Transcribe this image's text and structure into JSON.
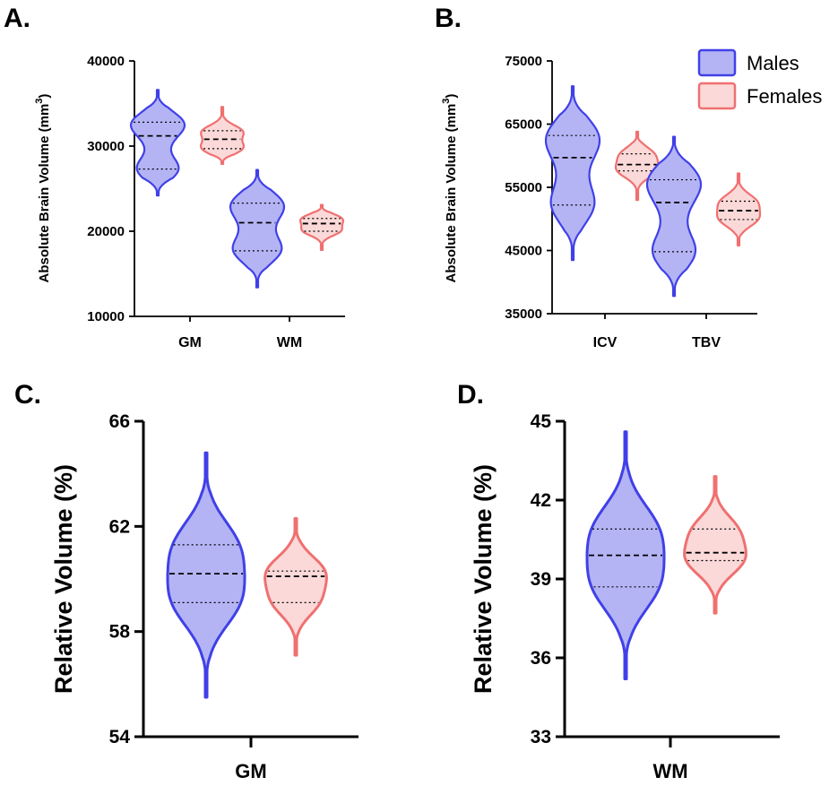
{
  "colors": {
    "male_stroke": "#4040e8",
    "male_fill": "#b4b4f5",
    "female_stroke": "#f07070",
    "female_fill": "#fbd9d9"
  },
  "legend": {
    "males": "Males",
    "females": "Females"
  },
  "panels": {
    "A": {
      "label": "A.",
      "ylabel_text": "Absolute Brain Volume (mm",
      "ylabel_sup": "3",
      "ylabel_close": ")"
    },
    "B": {
      "label": "B.",
      "ylabel_text": "Absolute Brain Volume (mm",
      "ylabel_sup": "3",
      "ylabel_close": ")"
    },
    "C": {
      "label": "C.",
      "ylabel": "Relative Volume (%)"
    },
    "D": {
      "label": "D.",
      "ylabel": "Relative Volume (%)"
    }
  },
  "chart_data": [
    {
      "id": "A",
      "type": "violin",
      "ylabel": "Absolute Brain Volume (mm3)",
      "ylim": [
        10000,
        40000
      ],
      "yticks": [
        10000,
        20000,
        30000,
        40000
      ],
      "ytick_labels": [
        "10000",
        "20000",
        "30000",
        "40000"
      ],
      "categories": [
        "GM",
        "WM"
      ],
      "series": [
        {
          "name": "Males",
          "groups": [
            {
              "category": "GM",
              "min": 24200,
              "max": 36600,
              "q1": 27300,
              "median": 31200,
              "q3": 32800
            },
            {
              "category": "WM",
              "min": 13400,
              "max": 27200,
              "q1": 17700,
              "median": 21000,
              "q3": 23300
            }
          ]
        },
        {
          "name": "Females",
          "groups": [
            {
              "category": "GM",
              "min": 27900,
              "max": 34600,
              "q1": 29700,
              "median": 30800,
              "q3": 31800
            },
            {
              "category": "WM",
              "min": 17800,
              "max": 23100,
              "q1": 20000,
              "median": 20900,
              "q3": 21500
            }
          ]
        }
      ]
    },
    {
      "id": "B",
      "type": "violin",
      "ylabel": "Absolute Brain Volume (mm3)",
      "ylim": [
        35000,
        75000
      ],
      "yticks": [
        35000,
        45000,
        55000,
        65000,
        75000
      ],
      "ytick_labels": [
        "35000",
        "45000",
        "55000",
        "65000",
        "75000"
      ],
      "categories": [
        "ICV",
        "TBV"
      ],
      "series": [
        {
          "name": "Males",
          "groups": [
            {
              "category": "ICV",
              "min": 43500,
              "max": 71000,
              "q1": 52200,
              "median": 59700,
              "q3": 63200
            },
            {
              "category": "TBV",
              "min": 37800,
              "max": 63000,
              "q1": 44800,
              "median": 52600,
              "q3": 56200
            }
          ]
        },
        {
          "name": "Females",
          "groups": [
            {
              "category": "ICV",
              "min": 53000,
              "max": 63800,
              "q1": 57600,
              "median": 58600,
              "q3": 60300
            },
            {
              "category": "TBV",
              "min": 45800,
              "max": 57200,
              "q1": 49900,
              "median": 51300,
              "q3": 52800
            }
          ]
        }
      ]
    },
    {
      "id": "C",
      "type": "violin",
      "ylabel": "Relative Volume (%)",
      "ylim": [
        54,
        66
      ],
      "yticks": [
        54,
        58,
        62,
        66
      ],
      "ytick_labels": [
        "54",
        "58",
        "62",
        "66"
      ],
      "categories": [
        "GM"
      ],
      "series": [
        {
          "name": "Males",
          "groups": [
            {
              "category": "GM",
              "min": 55.5,
              "max": 64.8,
              "q1": 59.1,
              "median": 60.2,
              "q3": 61.3
            }
          ]
        },
        {
          "name": "Females",
          "groups": [
            {
              "category": "GM",
              "min": 57.1,
              "max": 62.3,
              "q1": 59.1,
              "median": 60.1,
              "q3": 60.3
            }
          ]
        }
      ]
    },
    {
      "id": "D",
      "type": "violin",
      "ylabel": "Relative Volume (%)",
      "ylim": [
        33,
        45
      ],
      "yticks": [
        33,
        36,
        39,
        42,
        45
      ],
      "ytick_labels": [
        "33",
        "36",
        "39",
        "42",
        "45"
      ],
      "categories": [
        "WM"
      ],
      "series": [
        {
          "name": "Males",
          "groups": [
            {
              "category": "WM",
              "min": 35.2,
              "max": 44.6,
              "q1": 38.7,
              "median": 39.9,
              "q3": 40.9
            }
          ]
        },
        {
          "name": "Females",
          "groups": [
            {
              "category": "WM",
              "min": 37.7,
              "max": 42.9,
              "q1": 39.7,
              "median": 40.0,
              "q3": 40.9
            }
          ]
        }
      ]
    }
  ]
}
